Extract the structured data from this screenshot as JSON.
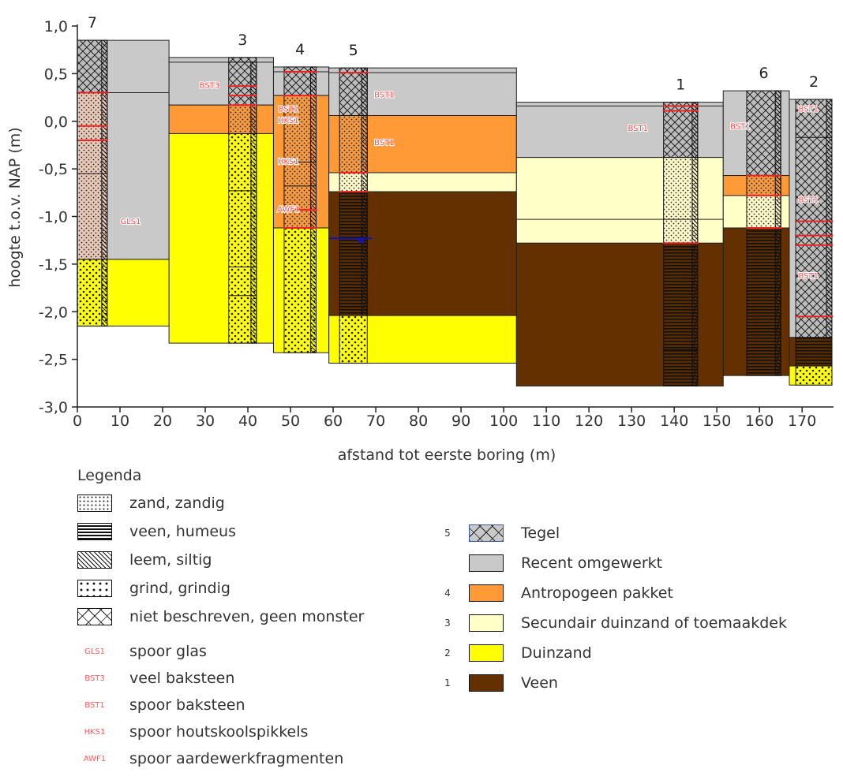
{
  "colors": {
    "tegel": "#c9c9c9",
    "recent": "#c9c9c9",
    "antropogeen": "#ff9a36",
    "secundair": "#ffffc8",
    "duinzand": "#ffff00",
    "veen": "#653000",
    "red_line": "#ee2222",
    "label_red": "#ff4a4a",
    "water": "#1414aa"
  },
  "chart_data": {
    "type": "cross-section",
    "xlabel": "afstand tot eerste boring (m)",
    "ylabel": "hoogte t.o.v. NAP (m)",
    "xlim": [
      0,
      177
    ],
    "ylim": [
      -3.0,
      1.0
    ],
    "xticks": [
      0,
      10,
      20,
      30,
      40,
      50,
      60,
      70,
      80,
      90,
      100,
      110,
      120,
      130,
      140,
      150,
      160,
      170
    ],
    "yticks": [
      1.0,
      0.5,
      0.0,
      -0.5,
      -1.0,
      -1.5,
      -2.0,
      -2.5,
      -3.0
    ],
    "ytick_labels": [
      "1,0",
      "0,5",
      "0,0",
      "-0,5",
      "-1,0",
      "-1,5",
      "-2,0",
      "-2,5",
      "-3,0"
    ],
    "sections": [
      {
        "x0": 0,
        "x1": 21.5,
        "layers": [
          {
            "unit": "recent",
            "top": 0.85,
            "bot": -1.45
          },
          {
            "unit": "duinzand",
            "top": -1.45,
            "bot": -2.15
          }
        ],
        "lines": [
          0.3
        ]
      },
      {
        "x0": 21.5,
        "x1": 46,
        "layers": [
          {
            "unit": "recent",
            "top": 0.67,
            "bot": 0.17
          },
          {
            "unit": "antropogeen",
            "top": 0.17,
            "bot": -0.13
          },
          {
            "unit": "duinzand",
            "top": -0.13,
            "bot": -2.33
          }
        ],
        "lines": [
          0.62
        ]
      },
      {
        "x0": 46,
        "x1": 59,
        "layers": [
          {
            "unit": "recent",
            "top": 0.57,
            "bot": 0.27
          },
          {
            "unit": "antropogeen",
            "top": 0.27,
            "bot": -1.12
          },
          {
            "unit": "duinzand",
            "top": -1.12,
            "bot": -2.43
          }
        ],
        "lines": [
          0.52
        ]
      },
      {
        "x0": 59,
        "x1": 103,
        "layers": [
          {
            "unit": "recent",
            "top": 0.56,
            "bot": 0.06
          },
          {
            "unit": "antropogeen",
            "top": 0.06,
            "bot": -0.54
          },
          {
            "unit": "secundair",
            "top": -0.54,
            "bot": -0.74
          },
          {
            "unit": "veen",
            "top": -0.74,
            "bot": -2.04
          },
          {
            "unit": "duinzand",
            "top": -2.04,
            "bot": -2.54
          }
        ],
        "lines": [
          0.51
        ]
      },
      {
        "x0": 103,
        "x1": 151.5,
        "layers": [
          {
            "unit": "recent",
            "top": 0.2,
            "bot": -0.38
          },
          {
            "unit": "secundair",
            "top": -0.38,
            "bot": -1.28
          },
          {
            "unit": "veen",
            "top": -1.28,
            "bot": -2.78
          }
        ],
        "lines": [
          0.16,
          -1.03
        ]
      },
      {
        "x0": 151.5,
        "x1": 167,
        "layers": [
          {
            "unit": "recent",
            "top": 0.32,
            "bot": -0.57
          },
          {
            "unit": "antropogeen",
            "top": -0.57,
            "bot": -0.78
          },
          {
            "unit": "secundair",
            "top": -0.78,
            "bot": -1.12
          },
          {
            "unit": "veen",
            "top": -1.12,
            "bot": -2.67
          }
        ],
        "lines": []
      },
      {
        "x0": 167,
        "x1": 177,
        "layers": [
          {
            "unit": "recent",
            "top": 0.23,
            "bot": -2.27
          },
          {
            "unit": "veen",
            "top": -2.27,
            "bot": -2.57
          },
          {
            "unit": "duinzand",
            "top": -2.57,
            "bot": -2.77
          }
        ],
        "lines": []
      }
    ],
    "boreholes": [
      {
        "label": "7",
        "x0": 0,
        "x1": 7,
        "top": 0.85,
        "bot": -2.15,
        "col": [
          {
            "p": "tegel",
            "top": 0.85,
            "bot": 0.3
          },
          {
            "p": "gravel_pink",
            "top": 0.3,
            "bot": -1.45
          },
          {
            "p": "gravel",
            "top": -1.45,
            "bot": -2.15
          }
        ],
        "strip": [
          {
            "top": 0.85,
            "bot": -2.15
          }
        ],
        "reds": [
          0.3,
          -0.05,
          -0.2
        ],
        "thin": [
          -0.55
        ]
      },
      {
        "label": "3",
        "x0": 35.5,
        "x1": 42,
        "top": 0.67,
        "bot": -2.33,
        "col": [
          {
            "p": "tegel",
            "top": 0.67,
            "bot": 0.62
          },
          {
            "p": "tegel",
            "top": 0.62,
            "bot": 0.17
          },
          {
            "p": "gravel_orange",
            "top": 0.17,
            "bot": -0.13
          },
          {
            "p": "gravel",
            "top": -0.13,
            "bot": -2.33
          }
        ],
        "strip": [
          {
            "top": 0.62,
            "bot": -2.33
          }
        ],
        "reds": [
          0.37,
          0.27,
          0.17
        ],
        "thin": [
          -0.73,
          -1.53,
          -1.83
        ]
      },
      {
        "label": "4",
        "x0": 48.5,
        "x1": 56,
        "top": 0.57,
        "bot": -2.43,
        "col": [
          {
            "p": "tegel",
            "top": 0.57,
            "bot": 0.52
          },
          {
            "p": "tegel",
            "top": 0.52,
            "bot": 0.27
          },
          {
            "p": "gravel_orange",
            "top": 0.27,
            "bot": -1.12
          },
          {
            "p": "gravel",
            "top": -1.12,
            "bot": -2.43
          }
        ],
        "strip": [
          {
            "top": 0.57,
            "bot": -2.43
          }
        ],
        "reds": [
          0.52,
          0.27,
          -0.93,
          -1.12
        ],
        "thin": [
          -0.43,
          -0.68
        ]
      },
      {
        "label": "5",
        "x0": 61.5,
        "x1": 68,
        "top": 0.56,
        "bot": -2.54,
        "col": [
          {
            "p": "tegel",
            "top": 0.56,
            "bot": 0.51
          },
          {
            "p": "tegel",
            "top": 0.51,
            "bot": 0.06
          },
          {
            "p": "gravel_orange",
            "top": 0.06,
            "bot": -0.54
          },
          {
            "p": "gravel_cream",
            "top": -0.54,
            "bot": -0.74
          },
          {
            "p": "veen",
            "top": -0.74,
            "bot": -2.04
          },
          {
            "p": "gravel",
            "top": -2.04,
            "bot": -2.54
          }
        ],
        "strip": [
          {
            "top": 0.56,
            "bot": -2.04
          }
        ],
        "reds": [
          0.51,
          -0.54,
          -0.74
        ],
        "thin": []
      },
      {
        "label": "1",
        "x0": 137.5,
        "x1": 145.5,
        "top": 0.2,
        "bot": -2.78,
        "col": [
          {
            "p": "tegel",
            "top": 0.2,
            "bot": 0.16
          },
          {
            "p": "tegel",
            "top": 0.16,
            "bot": -0.38
          },
          {
            "p": "gravel_cream",
            "top": -0.38,
            "bot": -1.28
          },
          {
            "p": "veen",
            "top": -1.28,
            "bot": -2.78
          }
        ],
        "strip": [
          {
            "top": 0.2,
            "bot": -2.78
          }
        ],
        "reds": [
          0.16,
          0.11,
          -1.28
        ],
        "thin": [
          -1.03,
          -2.4
        ]
      },
      {
        "label": "6",
        "x0": 157,
        "x1": 165,
        "top": 0.32,
        "bot": -2.67,
        "col": [
          {
            "p": "tegel",
            "top": 0.32,
            "bot": -0.57
          },
          {
            "p": "gravel_orange",
            "top": -0.57,
            "bot": -0.78
          },
          {
            "p": "gravel_cream",
            "top": -0.78,
            "bot": -1.12
          },
          {
            "p": "veen",
            "top": -1.12,
            "bot": -2.67
          }
        ],
        "strip": [
          {
            "top": 0.32,
            "bot": -2.67
          }
        ],
        "reds": [
          -0.57,
          -0.78,
          -1.12
        ],
        "thin": []
      },
      {
        "label": "2",
        "x0": 168.5,
        "x1": 177,
        "top": 0.23,
        "bot": -2.77,
        "col": [
          {
            "p": "tegel",
            "top": 0.23,
            "bot": -2.27
          },
          {
            "p": "veen",
            "top": -2.27,
            "bot": -2.57
          },
          {
            "p": "gravel",
            "top": -2.57,
            "bot": -2.77
          }
        ],
        "strip": [
          {
            "top": 0.23,
            "bot": -2.27
          }
        ],
        "reds": [
          -1.05,
          -1.2,
          -1.3,
          -2.05
        ],
        "thin": [
          -0.17
        ]
      }
    ],
    "codes": [
      {
        "text": "GLS1",
        "x": 12.5,
        "y": -1.08
      },
      {
        "text": "BST3",
        "x": 31,
        "y": 0.35
      },
      {
        "text": "BST1",
        "x": 49.5,
        "y": 0.1
      },
      {
        "text": "HKS1",
        "x": 49.5,
        "y": -0.02
      },
      {
        "text": "HKS1",
        "x": 49.5,
        "y": -0.45
      },
      {
        "text": "AWF1",
        "x": 49.5,
        "y": -0.95
      },
      {
        "text": "BST1",
        "x": 72,
        "y": 0.25
      },
      {
        "text": "BST1",
        "x": 72,
        "y": -0.25
      },
      {
        "text": "BST1",
        "x": 131.5,
        "y": -0.1
      },
      {
        "text": "BST1",
        "x": 155.5,
        "y": -0.08
      },
      {
        "text": "BST1",
        "x": 171.5,
        "y": 0.1
      },
      {
        "text": "BST1",
        "x": 171.5,
        "y": -0.85
      },
      {
        "text": "BST1",
        "x": 171.5,
        "y": -1.65
      }
    ],
    "water_level": {
      "x": 66.5,
      "y": -1.23
    }
  },
  "legend": {
    "title": "Legenda",
    "patterns": [
      {
        "id": "zand",
        "label": "zand, zandig"
      },
      {
        "id": "veen",
        "label": "veen, humeus"
      },
      {
        "id": "leem",
        "label": "leem, siltig"
      },
      {
        "id": "grind",
        "label": "grind, grindig"
      },
      {
        "id": "niet",
        "label": "niet beschreven, geen monster"
      }
    ],
    "codes": [
      {
        "code": "GLS1",
        "label": "spoor glas"
      },
      {
        "code": "BST3",
        "label": "veel baksteen"
      },
      {
        "code": "BST1",
        "label": "spoor baksteen"
      },
      {
        "code": "HKS1",
        "label": "spoor houtskoolspikkels"
      },
      {
        "code": "AWF1",
        "label": "spoor aardewerkfragmenten"
      }
    ],
    "units": [
      {
        "num": "5",
        "label": "Tegel",
        "color": "#c9c9c9"
      },
      {
        "num": "",
        "label": "Recent omgewerkt",
        "color": "#c9c9c9"
      },
      {
        "num": "4",
        "label": "Antropogeen pakket",
        "color": "#ff9a36"
      },
      {
        "num": "3",
        "label": "Secundair duinzand of toemaakdek",
        "color": "#ffffc8"
      },
      {
        "num": "2",
        "label": "Duinzand",
        "color": "#ffff00"
      },
      {
        "num": "1",
        "label": "Veen",
        "color": "#653000"
      }
    ]
  }
}
